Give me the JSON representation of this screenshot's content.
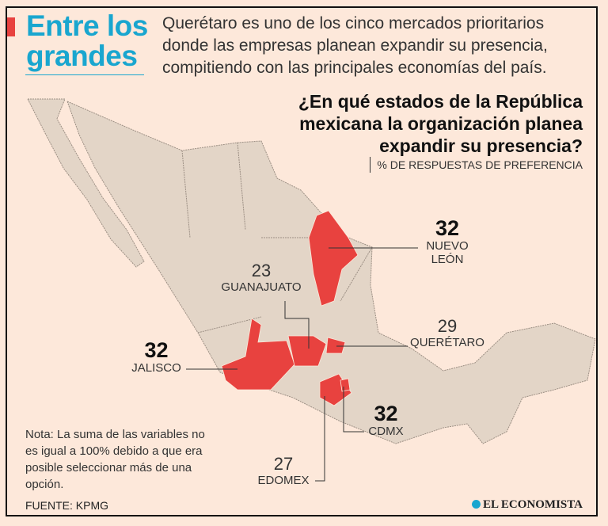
{
  "header": {
    "title_line1": "Entre los",
    "title_line2": "grandes",
    "intro": "Querétaro es uno de los cinco mercados prioritarios donde las empresas planean expandir su presencia, compitiendo con las principales economías del país."
  },
  "question": {
    "text": "¿En qué estados de la República mexicana la organización planea expandir su presencia?",
    "subtitle": "% DE RESPUESTAS DE PREFERENCIA"
  },
  "states": [
    {
      "name": "NUEVO",
      "name2": "LEÓN",
      "value": "32"
    },
    {
      "name": "GUANAJUATO",
      "value": "23"
    },
    {
      "name": "QUERÉTARO",
      "value": "29"
    },
    {
      "name": "JALISCO",
      "value": "32"
    },
    {
      "name": "CDMX",
      "value": "32"
    },
    {
      "name": "EDOMEX",
      "value": "27"
    }
  ],
  "colors": {
    "highlight": "#e8423f",
    "land": "#e3d5c7",
    "accent": "#19a6cf"
  },
  "footer": {
    "note": "Nota: La suma de las variables no es igual a 100% debido a que era posible seleccionar más de una opción.",
    "source": "FUENTE: KPMG",
    "brand": "EL ECONOMISTA"
  }
}
